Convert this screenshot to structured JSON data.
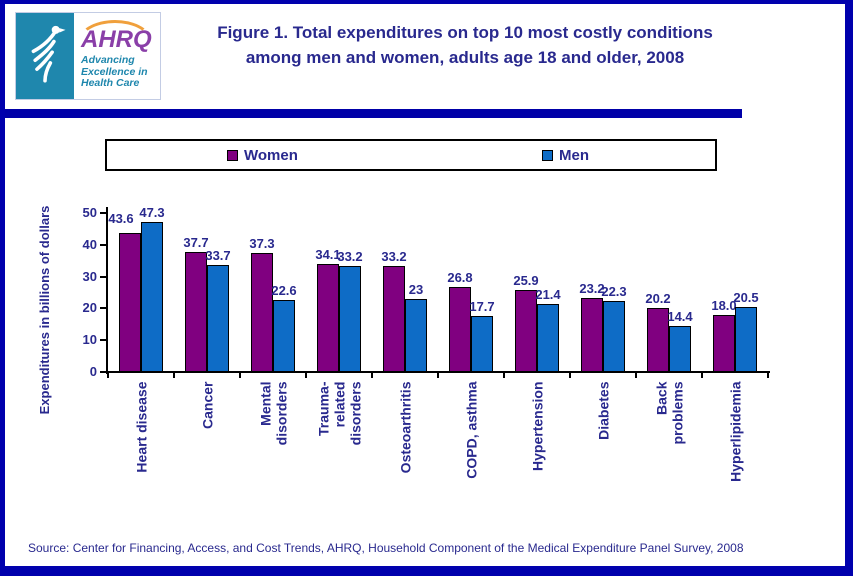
{
  "page": {
    "title_line1": "Figure 1. Total expenditures on top 10 most costly conditions",
    "title_line2": "among men and women, adults age 18 and older, 2008",
    "source": "Source: Center for Financing, Access, and Cost Trends, AHRQ, Household Component of the Medical Expenditure Panel Survey, 2008"
  },
  "logo": {
    "acronym": "AHRQ",
    "tagline": "Advancing\nExcellence in\nHealth Care",
    "colors": {
      "teal": "#1f87ad",
      "purple": "#8a3fa8",
      "orange": "#f0a03c"
    }
  },
  "theme": {
    "navy_text": "#29298e",
    "border_blue": "#0000ad",
    "divider_blue": "#0000a8",
    "women_purple": "#800080",
    "men_blue": "#0e6cc6"
  },
  "chart_data": {
    "type": "bar",
    "title": "",
    "xlabel": "",
    "ylabel": "Expenditures in billions of dollars",
    "ylim": [
      0,
      50
    ],
    "yticks": [
      "0",
      "10",
      "20",
      "30",
      "40",
      "50"
    ],
    "grid": false,
    "legend_position": "top",
    "categories": [
      "Heart disease",
      "Cancer",
      "Mental\ndisorders",
      "Trauma-\nrelated\ndisorders",
      "Osteoarthritis",
      "COPD, asthma",
      "Hypertension",
      "Diabetes",
      "Back\nproblems",
      "Hyperlipidemia"
    ],
    "series": [
      {
        "name": "Women",
        "color": "#800080",
        "values": [
          43.6,
          37.7,
          37.3,
          34.1,
          33.2,
          26.8,
          25.9,
          23.2,
          20.2,
          18.0
        ],
        "labels": [
          "43.6",
          "37.7",
          "37.3",
          "34.1",
          "33.2",
          "26.8",
          "25.9",
          "23.2",
          "20.2",
          "18.0"
        ]
      },
      {
        "name": "Men",
        "color": "#0e6cc6",
        "values": [
          47.3,
          33.7,
          22.6,
          33.2,
          23,
          17.7,
          21.4,
          22.3,
          14.4,
          20.5
        ],
        "labels": [
          "47.3",
          "33.7",
          "22.6",
          "33.2",
          "23",
          "17.7",
          "21.4",
          "22.3",
          "14.4",
          "20.5"
        ]
      }
    ]
  }
}
